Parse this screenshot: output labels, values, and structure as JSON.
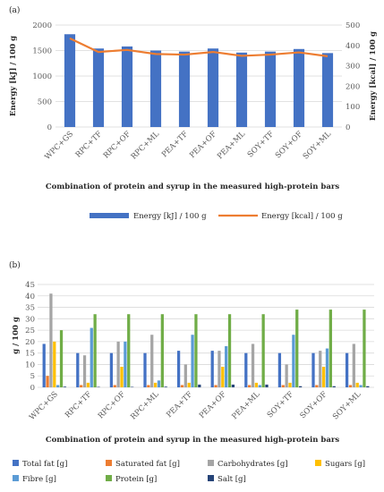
{
  "chart_data": [
    {
      "type": "bar",
      "panel_label": "(a)",
      "title": "",
      "xlabel": "Combination of protein and syrup in the measured high-protein bars",
      "ylabel": "Energy [kJ] / 100 g",
      "y2label": "Energy [kcal] / 100 g",
      "categories": [
        "WPC+GS",
        "RPC+TF",
        "RPC+OF",
        "RPC+ML",
        "PEA+TF",
        "PEA+OF",
        "PEA+ML",
        "SOY+TF",
        "SOY+OF",
        "SOY+ML"
      ],
      "ylim": [
        0,
        2000
      ],
      "yticks": [
        "0",
        "500",
        "1000",
        "1500",
        "2000"
      ],
      "y2lim": [
        0,
        500
      ],
      "y2ticks": [
        "0",
        "100",
        "200",
        "300",
        "400",
        "500"
      ],
      "grid": true,
      "legend_position": "bottom",
      "series": [
        {
          "name": "Energy [kJ] / 100 g",
          "type": "bar",
          "axis": "left",
          "color": "#4472C4",
          "values": [
            1820,
            1540,
            1580,
            1500,
            1480,
            1540,
            1460,
            1480,
            1530,
            1450
          ]
        },
        {
          "name": "Energy [kcal] / 100 g",
          "type": "line",
          "axis": "right",
          "color": "#ED7D31",
          "values": [
            435,
            368,
            378,
            358,
            355,
            368,
            349,
            355,
            366,
            347
          ]
        }
      ]
    },
    {
      "type": "bar",
      "panel_label": "(b)",
      "title": "",
      "xlabel": "Combination of protein and syrup in the measured high-protein bars",
      "ylabel": "g / 100 g",
      "categories": [
        "WPC+GS",
        "RPC+TF",
        "RPC+OF",
        "RPC+ML",
        "PEA+TF",
        "PEA+OF",
        "PEA+ML",
        "SOY+TF",
        "SOY+OF",
        "SOY+ML"
      ],
      "ylim": [
        0,
        45
      ],
      "yticks": [
        "0",
        "5",
        "10",
        "15",
        "20",
        "25",
        "30",
        "35",
        "40",
        "45"
      ],
      "grid": true,
      "legend_position": "bottom",
      "series": [
        {
          "name": "Total fat [g]",
          "color": "#4472C4",
          "values": [
            19,
            15,
            15,
            15,
            16,
            16,
            15,
            15,
            15,
            15
          ]
        },
        {
          "name": "Saturated fat [g]",
          "color": "#ED7D31",
          "values": [
            5,
            1,
            1,
            1,
            1,
            1,
            1,
            1,
            1,
            1
          ]
        },
        {
          "name": "Carbohydrates [g]",
          "color": "#A5A5A5",
          "values": [
            41,
            14,
            20,
            23,
            10,
            16,
            19,
            10,
            16,
            19
          ]
        },
        {
          "name": "Sugars [g]",
          "color": "#FFC000",
          "values": [
            20,
            2,
            9,
            2,
            2,
            9,
            2,
            2,
            9,
            2
          ]
        },
        {
          "name": "Fibre [g]",
          "color": "#5B9BD5",
          "values": [
            1,
            26,
            20,
            3,
            23,
            18,
            1,
            23,
            17,
            1
          ]
        },
        {
          "name": "Protein [g]",
          "color": "#70AD47",
          "values": [
            25,
            32,
            32,
            32,
            32,
            32,
            32,
            34,
            34,
            34
          ]
        },
        {
          "name": "Salt [g]",
          "color": "#264478",
          "values": [
            0.3,
            0.2,
            0.2,
            0.3,
            1.2,
            1.2,
            1.2,
            0.5,
            0.5,
            0.5
          ]
        }
      ]
    }
  ]
}
